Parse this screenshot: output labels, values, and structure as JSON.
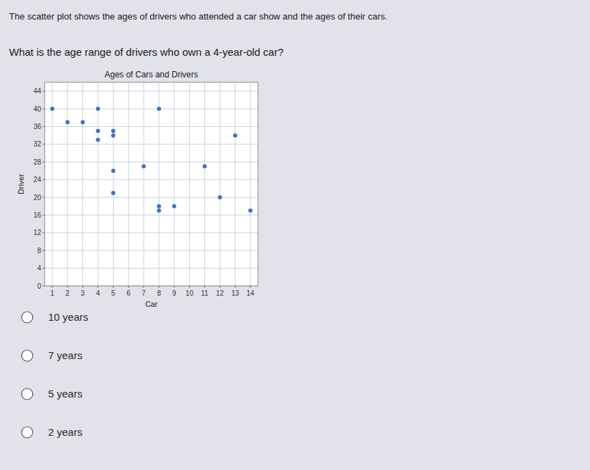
{
  "chart_data": {
    "type": "scatter",
    "title": "Ages of Cars and Drivers",
    "x_label": "Car",
    "y_label": "Driver",
    "x": [
      1,
      2,
      3,
      4,
      4,
      4,
      5,
      5,
      5,
      5,
      7,
      8,
      8,
      8,
      9,
      11,
      12,
      13,
      14
    ],
    "values": [
      40,
      37,
      37,
      40,
      35,
      33,
      35,
      34,
      26,
      21,
      27,
      40,
      18,
      17,
      18,
      27,
      20,
      34,
      17
    ],
    "color": "#4472C4",
    "xlim": [
      0.5,
      14.5
    ],
    "ylim": [
      0,
      46
    ],
    "xticks": [
      1,
      2,
      3,
      4,
      5,
      6,
      7,
      8,
      9,
      10,
      11,
      12,
      13,
      14
    ],
    "yticks": [
      0,
      4,
      8,
      12,
      16,
      20,
      24,
      28,
      32,
      36,
      40,
      44
    ],
    "grid": true,
    "annotations": [
      "The scatter plot shows the ages of drivers who attended a car show and the ages of their cars.",
      "What is the age range of drivers who own a 4-year-old car?",
      "10 years",
      "7 years",
      "5 years",
      "2 years"
    ]
  }
}
